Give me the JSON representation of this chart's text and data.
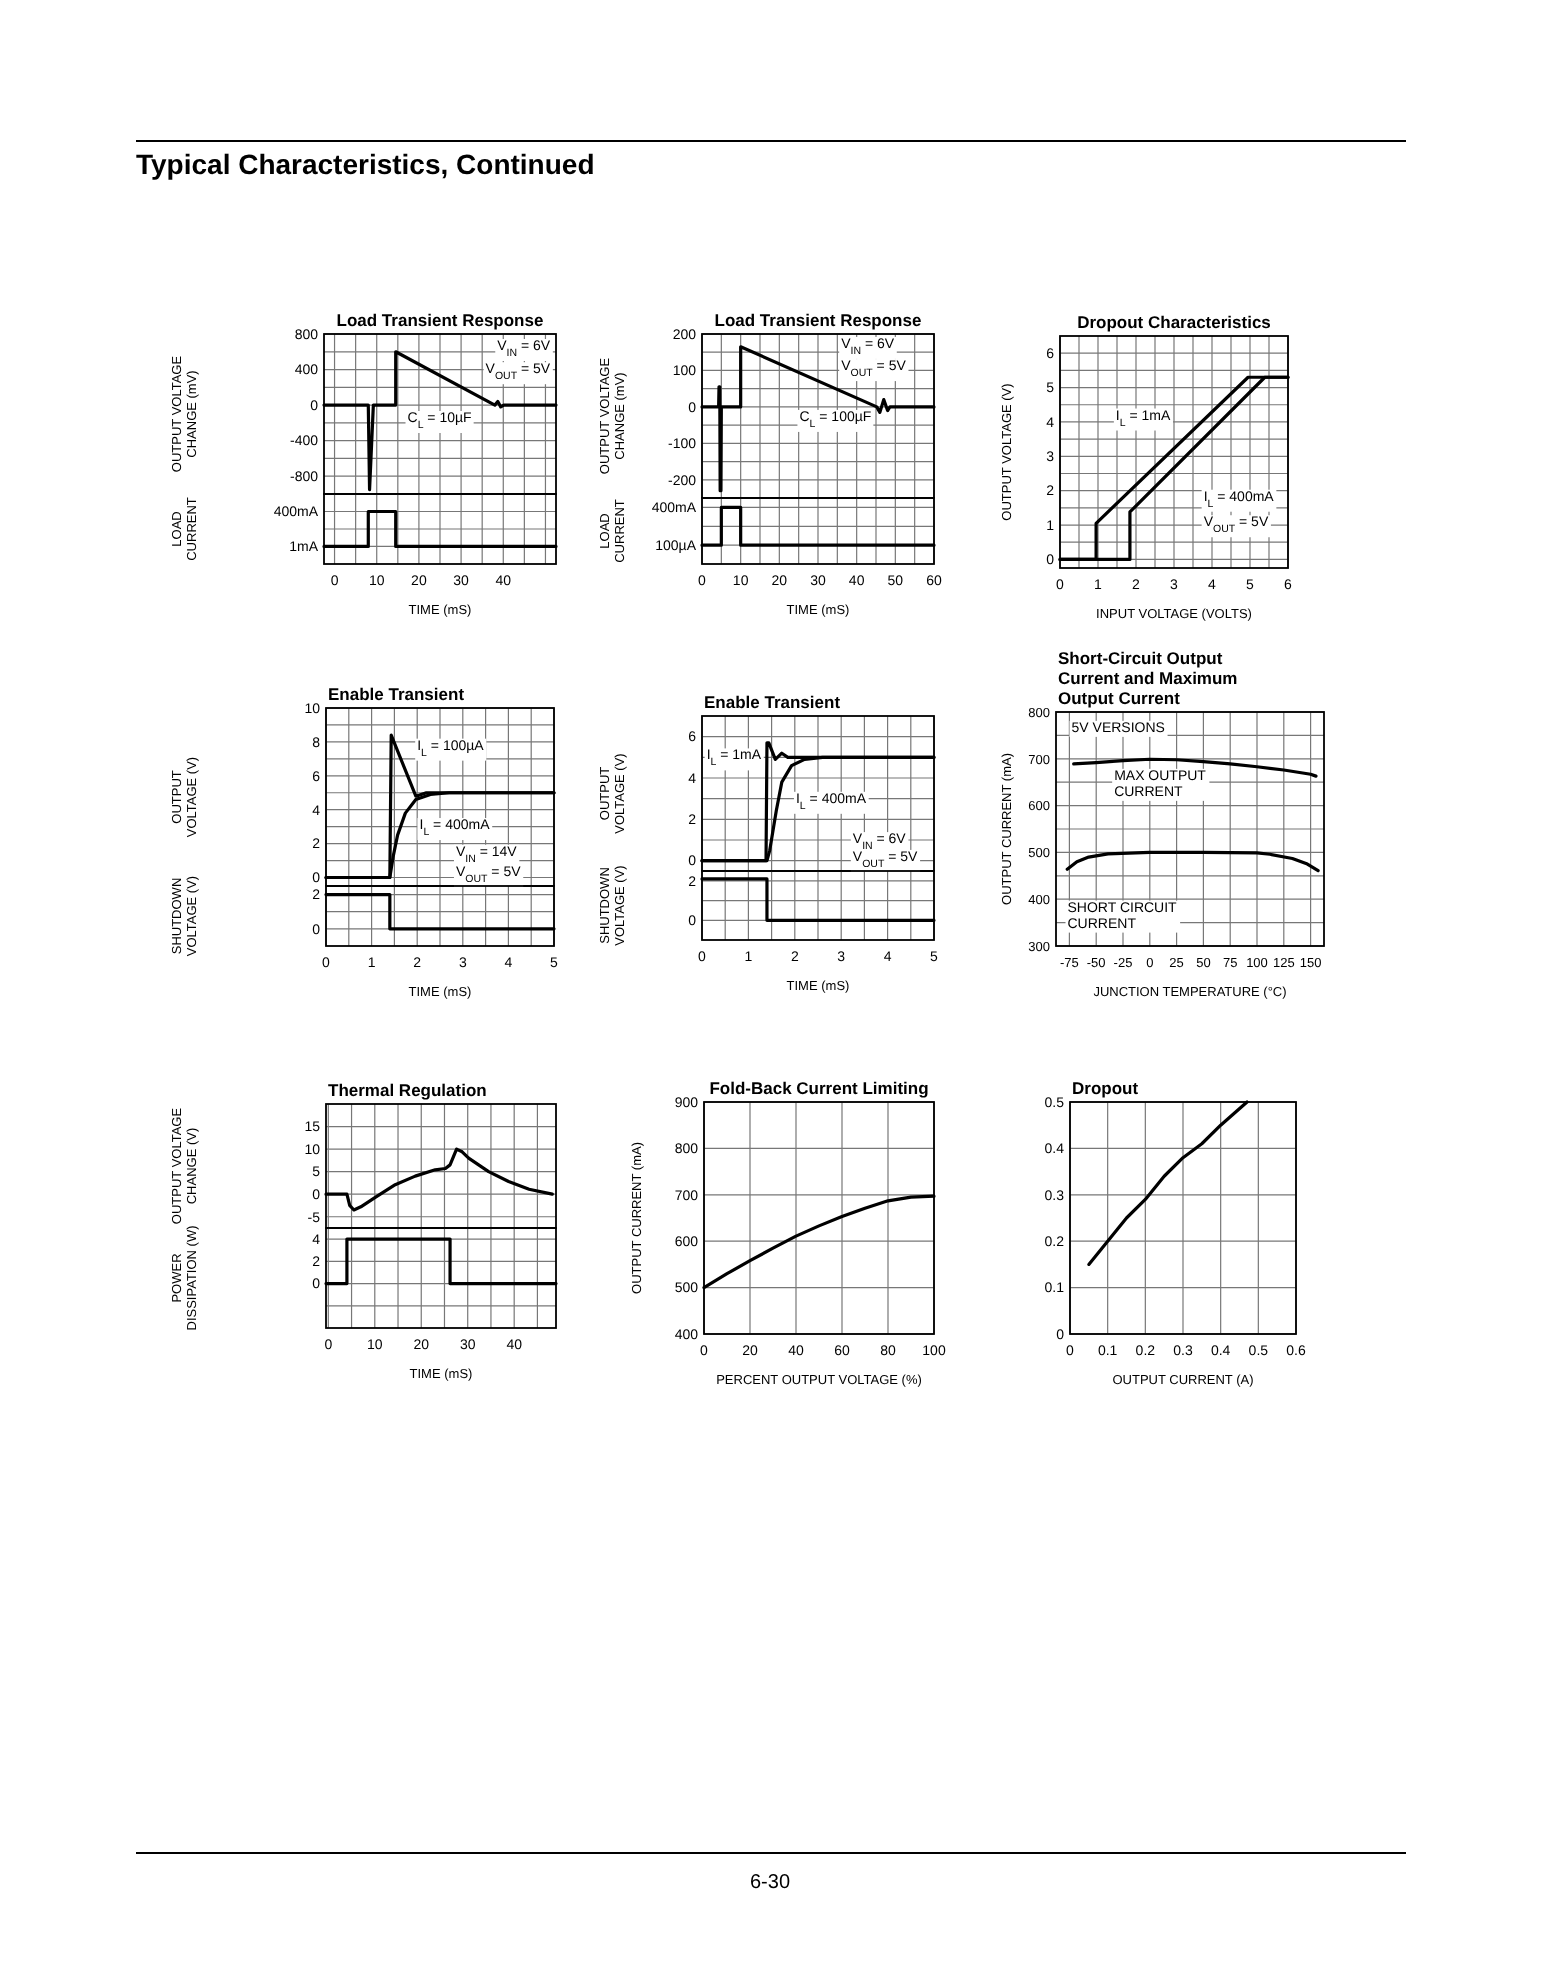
{
  "chart_data": [
    {
      "type": "other",
      "title": "Typical Characteristics, Continued",
      "annotations": [
        "6-30"
      ]
    },
    {
      "type": "line",
      "title": "Load Transient Response",
      "ylabel": "OUTPUT VOLTAGE CHANGE (mV)",
      "xlim": [
        -2.5,
        52.5
      ],
      "ylim": [
        -1000,
        800
      ],
      "xticks": [
        0,
        {
          "value": 5,
          "label": null
        },
        10,
        {
          "value": 15,
          "label": null
        },
        20,
        {
          "value": 25,
          "label": null
        },
        30,
        {
          "value": 35,
          "label": null
        },
        40,
        {
          "value": 45,
          "label": null
        },
        {
          "value": 50,
          "label": null
        }
      ],
      "yticks": [
        800,
        {
          "value": 600,
          "label": null
        },
        400,
        {
          "value": 200,
          "label": null
        },
        0,
        {
          "value": -200,
          "label": null
        },
        -400,
        {
          "value": -600,
          "label": null
        },
        -800
      ],
      "grid": true,
      "tick_labels": "y",
      "annotations": [
        "V$_{IN}$ = 6V",
        "V$_{OUT}$ = 5V"
      ],
      "series": [
        {
          "name": "C$_{L}$ = 10µF",
          "color": "#000000",
          "x": [
            -2.5,
            8,
            8.3,
            9.2,
            14.5,
            14.5,
            38,
            38.7,
            39.4,
            40.1,
            52.5
          ],
          "values": [
            0,
            0,
            -950,
            0,
            0,
            600,
            0,
            40,
            -20,
            0,
            0
          ]
        }
      ]
    },
    {
      "type": "line",
      "xlabel": "TIME (mS)",
      "ylabel": "LOAD CURRENT",
      "xlim": [
        -2.5,
        52.5
      ],
      "ylim": [
        -200,
        600
      ],
      "xticks": [
        0,
        {
          "value": 5,
          "label": null
        },
        10,
        {
          "value": 15,
          "label": null
        },
        20,
        {
          "value": 25,
          "label": null
        },
        30,
        {
          "value": 35,
          "label": null
        },
        40,
        {
          "value": 45,
          "label": null
        },
        {
          "value": 50,
          "label": null
        }
      ],
      "yticks": [
        {
          "value": 1,
          "label": "1mA"
        },
        {
          "value": 200,
          "label": null
        },
        {
          "value": 400,
          "label": "400mA"
        }
      ],
      "grid": true,
      "series": [
        {
          "color": "#000000",
          "x": [
            -2.5,
            8,
            8,
            14.5,
            14.5,
            52.5
          ],
          "values": [
            1,
            1,
            400,
            400,
            1,
            1
          ]
        }
      ]
    },
    {
      "type": "line",
      "title": "Load Transient Response",
      "ylabel": "OUTPUT VOLTAGE CHANGE (mV)",
      "xlim": [
        0,
        60
      ],
      "ylim": [
        -250,
        200
      ],
      "xticks": [
        0,
        {
          "value": 5,
          "label": null
        },
        10,
        {
          "value": 15,
          "label": null
        },
        20,
        {
          "value": 25,
          "label": null
        },
        30,
        {
          "value": 35,
          "label": null
        },
        40,
        {
          "value": 45,
          "label": null
        },
        50,
        {
          "value": 55,
          "label": null
        },
        60
      ],
      "yticks": [
        200,
        {
          "value": 150,
          "label": null
        },
        100,
        {
          "value": 50,
          "label": null
        },
        0,
        {
          "value": -50,
          "label": null
        },
        -100,
        {
          "value": -150,
          "label": null
        },
        -200
      ],
      "grid": true,
      "tick_labels": "y",
      "annotations": [
        "V$_{IN}$ = 6V",
        "V$_{OUT}$ = 5V"
      ],
      "series": [
        {
          "name": "C$_{L}$ = 100µF",
          "color": "#000000",
          "x": [
            0,
            4.3,
            4.4,
            4.6,
            4.7,
            4.9,
            5,
            10,
            10,
            45.2,
            46,
            47,
            48,
            48.6,
            60
          ],
          "values": [
            0,
            0,
            55,
            55,
            -230,
            -230,
            0,
            0,
            165,
            0,
            -15,
            20,
            -10,
            0,
            0
          ]
        }
      ]
    },
    {
      "type": "line",
      "xlabel": "TIME (mS)",
      "ylabel": "LOAD CURRENT",
      "xlim": [
        0,
        60
      ],
      "ylim": [
        -50,
        475
      ],
      "xticks": [
        0,
        {
          "value": 5,
          "label": null
        },
        10,
        {
          "value": 15,
          "label": null
        },
        20,
        {
          "value": 25,
          "label": null
        },
        30,
        {
          "value": 35,
          "label": null
        },
        40,
        {
          "value": 45,
          "label": null
        },
        50,
        {
          "value": 55,
          "label": null
        },
        60
      ],
      "yticks": [
        {
          "value": 100,
          "label": "100µA"
        },
        {
          "value": 250,
          "label": null
        },
        {
          "value": 400,
          "label": "400mA"
        }
      ],
      "grid": true,
      "series": [
        {
          "color": "#000000",
          "x": [
            0,
            5,
            5,
            10,
            10,
            60
          ],
          "values": [
            100,
            100,
            400,
            400,
            100,
            100
          ]
        }
      ]
    },
    {
      "type": "line",
      "title": "Dropout Characteristics",
      "xlabel": "INPUT VOLTAGE (VOLTS)",
      "ylabel": "OUTPUT VOLTAGE (V)",
      "xlim": [
        0,
        6
      ],
      "ylim": [
        -0.25,
        6.5
      ],
      "xticks": [
        0,
        {
          "value": 0.5,
          "label": null
        },
        1,
        {
          "value": 1.5,
          "label": null
        },
        2,
        {
          "value": 2.5,
          "label": null
        },
        3,
        {
          "value": 3.5,
          "label": null
        },
        4,
        {
          "value": 4.5,
          "label": null
        },
        5,
        {
          "value": 5.5,
          "label": null
        },
        6
      ],
      "yticks": [
        0,
        {
          "value": 0.5,
          "label": null
        },
        1,
        {
          "value": 1.5,
          "label": null
        },
        2,
        {
          "value": 2.5,
          "label": null
        },
        3,
        {
          "value": 3.5,
          "label": null
        },
        4,
        {
          "value": 4.5,
          "label": null
        },
        5,
        {
          "value": 5.5,
          "label": null
        },
        6
      ],
      "grid": true,
      "annotations": [
        "V$_{OUT}$ = 5V"
      ],
      "series": [
        {
          "name": "I$_{L}$ = 1mA",
          "color": "#000000",
          "x": [
            0,
            0.95,
            0.95,
            4.95,
            6
          ],
          "values": [
            0,
            0,
            1.05,
            5.3,
            5.3
          ]
        },
        {
          "name": "I$_{L}$ = 400mA",
          "color": "#000000",
          "x": [
            0,
            1.84,
            1.84,
            5.39,
            6
          ],
          "values": [
            0,
            0,
            1.38,
            5.3,
            5.3
          ]
        }
      ]
    },
    {
      "type": "line",
      "title": "Enable Transient",
      "ylabel": "OUTPUT VOLTAGE (V)",
      "xlim": [
        0,
        5
      ],
      "ylim": [
        -0.5,
        10
      ],
      "xticks": [
        0,
        {
          "value": 0.5,
          "label": null
        },
        1,
        {
          "value": 1.5,
          "label": null
        },
        2,
        {
          "value": 2.5,
          "label": null
        },
        3,
        {
          "value": 3.5,
          "label": null
        },
        4,
        {
          "value": 4.5,
          "label": null
        },
        5
      ],
      "yticks": [
        10,
        {
          "value": 9,
          "label": null
        },
        8,
        {
          "value": 7,
          "label": null
        },
        6,
        {
          "value": 5,
          "label": null
        },
        4,
        {
          "value": 3,
          "label": null
        },
        2,
        {
          "value": 1,
          "label": null
        },
        0
      ],
      "grid": true,
      "tick_labels": "y",
      "annotations": [
        "V$_{IN}$ = 14V",
        "V$_{OUT}$ = 5V"
      ],
      "series": [
        {
          "name": "I$_{L}$ = 100µA",
          "color": "#000000",
          "x": [
            0,
            1.4,
            1.43,
            1.97,
            2.2,
            5
          ],
          "values": [
            0,
            0,
            8.4,
            4.8,
            5,
            5
          ]
        },
        {
          "name": "I$_{L}$ = 400mA",
          "color": "#000000",
          "x": [
            0,
            1.4,
            1.47,
            1.57,
            1.74,
            1.97,
            2.29,
            2.7,
            5
          ],
          "values": [
            0,
            0,
            1.2,
            2.5,
            3.8,
            4.6,
            4.9,
            5,
            5
          ]
        }
      ]
    },
    {
      "type": "line",
      "xlabel": "TIME (mS)",
      "ylabel": "SHUTDOWN VOLTAGE (V)",
      "xlim": [
        0,
        5
      ],
      "ylim": [
        -1,
        2.5
      ],
      "xticks": [
        0,
        {
          "value": 0.5,
          "label": null
        },
        1,
        {
          "value": 1.5,
          "label": null
        },
        2,
        {
          "value": 2.5,
          "label": null
        },
        3,
        {
          "value": 3.5,
          "label": null
        },
        4,
        {
          "value": 4.5,
          "label": null
        },
        5
      ],
      "yticks": [
        2,
        {
          "value": 1,
          "label": null
        },
        0
      ],
      "grid": true,
      "series": [
        {
          "color": "#000000",
          "x": [
            0,
            1.4,
            1.4,
            5
          ],
          "values": [
            2,
            2,
            0,
            0
          ]
        }
      ]
    },
    {
      "type": "line",
      "title": "Enable Transient",
      "ylabel": "OUTPUT VOLTAGE (V)",
      "xlim": [
        0,
        5
      ],
      "ylim": [
        -0.5,
        7
      ],
      "xticks": [
        0,
        {
          "value": 0.5,
          "label": null
        },
        1,
        {
          "value": 1.5,
          "label": null
        },
        2,
        {
          "value": 2.5,
          "label": null
        },
        3,
        {
          "value": 3.5,
          "label": null
        },
        4,
        {
          "value": 4.5,
          "label": null
        },
        5
      ],
      "yticks": [
        6,
        {
          "value": 5,
          "label": null
        },
        4,
        {
          "value": 3,
          "label": null
        },
        2,
        {
          "value": 1,
          "label": null
        },
        0
      ],
      "grid": true,
      "tick_labels": "y",
      "annotations": [
        "V$_{IN}$ = 6V",
        "V$_{OUT}$ = 5V"
      ],
      "series": [
        {
          "name": "I$_{L}$ = 1mA",
          "color": "#000000",
          "x": [
            0,
            1.38,
            1.4,
            1.44,
            1.58,
            1.72,
            1.85,
            5
          ],
          "values": [
            0,
            0,
            5.7,
            5.7,
            4.9,
            5.2,
            5,
            5
          ]
        },
        {
          "name": "I$_{L}$ = 400mA",
          "color": "#000000",
          "x": [
            0,
            1.4,
            1.46,
            1.6,
            1.72,
            1.93,
            2.21,
            2.6,
            5
          ],
          "values": [
            0,
            0,
            0.5,
            2.4,
            3.8,
            4.6,
            4.9,
            5,
            5
          ]
        }
      ]
    },
    {
      "type": "line",
      "xlabel": "TIME (mS)",
      "ylabel": "SHUTDOWN VOLTAGE (V)",
      "xlim": [
        0,
        5
      ],
      "ylim": [
        -1,
        2.5
      ],
      "xticks": [
        0,
        {
          "value": 0.5,
          "label": null
        },
        1,
        {
          "value": 1.5,
          "label": null
        },
        2,
        {
          "value": 2.5,
          "label": null
        },
        3,
        {
          "value": 3.5,
          "label": null
        },
        4,
        {
          "value": 4.5,
          "label": null
        },
        5
      ],
      "yticks": [
        2,
        {
          "value": 1,
          "label": null
        },
        0
      ],
      "grid": true,
      "series": [
        {
          "color": "#000000",
          "x": [
            0,
            1.4,
            1.4,
            5
          ],
          "values": [
            2.1,
            2.1,
            0,
            0
          ]
        }
      ]
    },
    {
      "type": "line",
      "title": "Short-Circuit Output Current and Maximum Output Current",
      "xlabel": "JUNCTION TEMPERATURE (°C)",
      "ylabel": "OUTPUT CURRENT (mA)",
      "xlim": [
        -87.5,
        162.5
      ],
      "ylim": [
        300,
        800
      ],
      "xticks": [
        -75,
        -50,
        -25,
        0,
        25,
        50,
        75,
        100,
        125,
        150
      ],
      "yticks": [
        300,
        {
          "value": 350,
          "label": null
        },
        400,
        {
          "value": 450,
          "label": null
        },
        500,
        {
          "value": 550,
          "label": null
        },
        600,
        {
          "value": 650,
          "label": null
        },
        700,
        {
          "value": 750,
          "label": null
        },
        800
      ],
      "grid": true,
      "annotations": [
        "5V VERSIONS"
      ],
      "series": [
        {
          "name": "MAX OUTPUT CURRENT",
          "color": "#000000",
          "x": [
            -71,
            -50,
            -25,
            0,
            25,
            50,
            75,
            100,
            125,
            150,
            155
          ],
          "values": [
            689,
            692,
            696,
            699,
            698,
            694,
            689,
            683,
            676,
            667,
            663
          ]
        },
        {
          "name": "SHORT CIRCUIT CURRENT",
          "color": "#000000",
          "x": [
            -77,
            -68,
            -57,
            -39,
            0,
            50,
            100,
            112,
            133,
            147,
            157
          ],
          "values": [
            464,
            480,
            490,
            497,
            500,
            500,
            499,
            496,
            487,
            475,
            461
          ]
        }
      ]
    },
    {
      "type": "line",
      "title": "Thermal Regulation",
      "ylabel": "OUTPUT VOLTAGE CHANGE (V)",
      "xlim": [
        -0.5,
        49
      ],
      "ylim": [
        -7.5,
        20
      ],
      "xticks": [
        0,
        {
          "value": 5,
          "label": null
        },
        10,
        {
          "value": 15,
          "label": null
        },
        20,
        {
          "value": 25,
          "label": null
        },
        30,
        {
          "value": 35,
          "label": null
        },
        40,
        {
          "value": 45,
          "label": null
        }
      ],
      "yticks": [
        15,
        10,
        5,
        0,
        -5
      ],
      "grid": true,
      "tick_labels": "y",
      "series": [
        {
          "color": "#000000",
          "x": [
            -0.5,
            4,
            4.6,
            5.5,
            7,
            10.1,
            14.4,
            18.7,
            23,
            25.2,
            26.2,
            27.6,
            28.8,
            30.2,
            34.5,
            38.8,
            43.2,
            48.2
          ],
          "values": [
            0,
            0,
            -2.5,
            -3.5,
            -2.8,
            -0.7,
            2.1,
            4,
            5.4,
            5.7,
            6.5,
            10,
            9.4,
            8,
            5,
            2.8,
            1.1,
            0
          ]
        }
      ]
    },
    {
      "type": "line",
      "xlabel": "TIME (mS)",
      "ylabel": "POWER DISSIPATION (W)",
      "xlim": [
        -0.5,
        49
      ],
      "ylim": [
        -4,
        5
      ],
      "xticks": [
        0,
        {
          "value": 5,
          "label": null
        },
        10,
        {
          "value": 15,
          "label": null
        },
        20,
        {
          "value": 25,
          "label": null
        },
        30,
        {
          "value": 35,
          "label": null
        },
        40,
        {
          "value": 45,
          "label": null
        }
      ],
      "yticks": [
        4,
        2,
        0,
        {
          "value": -2,
          "label": null
        }
      ],
      "grid": true,
      "series": [
        {
          "color": "#000000",
          "x": [
            -0.5,
            4,
            4,
            26.2,
            26.2,
            49
          ],
          "values": [
            0,
            0,
            4,
            4,
            0,
            0
          ]
        }
      ]
    },
    {
      "type": "line",
      "title": "Fold-Back Current Limiting",
      "xlabel": "PERCENT OUTPUT VOLTAGE (%)",
      "ylabel": "OUTPUT CURRENT (mA)",
      "xlim": [
        0,
        100
      ],
      "ylim": [
        400,
        900
      ],
      "xticks": [
        0,
        20,
        40,
        60,
        80,
        100
      ],
      "yticks": [
        400,
        500,
        600,
        700,
        800,
        900
      ],
      "grid": true,
      "series": [
        {
          "color": "#000000",
          "x": [
            0,
            10,
            20,
            30,
            40,
            50,
            60,
            70,
            80,
            90,
            100
          ],
          "values": [
            500,
            530,
            558,
            585,
            611,
            633,
            653,
            671,
            687,
            695,
            697
          ]
        }
      ]
    },
    {
      "type": "line",
      "title": "Dropout",
      "xlabel": "OUTPUT CURRENT (A)",
      "xlim": [
        0,
        0.6
      ],
      "ylim": [
        0,
        0.5
      ],
      "xticks": [
        0,
        0.1,
        0.2,
        0.3,
        0.4,
        0.5,
        0.6
      ],
      "yticks": [
        0,
        0.1,
        0.2,
        0.3,
        0.4,
        0.5
      ],
      "grid": true,
      "series": [
        {
          "color": "#000000",
          "x": [
            0.05,
            0.1,
            0.15,
            0.2,
            0.25,
            0.3,
            0.35,
            0.4,
            0.47
          ],
          "values": [
            0.15,
            0.2,
            0.25,
            0.29,
            0.34,
            0.38,
            0.41,
            0.45,
            0.5
          ]
        }
      ]
    }
  ]
}
